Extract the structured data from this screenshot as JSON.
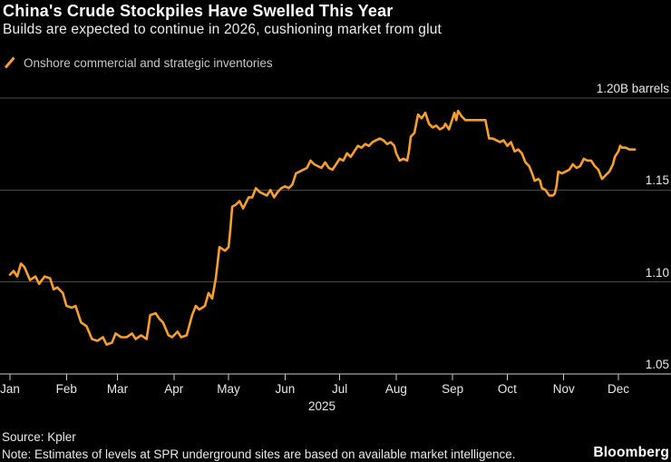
{
  "header": {
    "title": "China's Crude Stockpiles Have Swelled This Year",
    "subtitle": "Builds are expected to continue in 2026, cushioning market from glut"
  },
  "legend": {
    "label": "Onshore commercial and strategic inventories",
    "marker": "orange-slash"
  },
  "footer": {
    "source": "Source: Kpler",
    "note": "Note: Estimates of levels at SPR underground sites are based on available market intelligence.",
    "brand": "Bloomberg"
  },
  "colors": {
    "background": "#000000",
    "series": "#F79E2D",
    "grid": "#4A4A4A",
    "axis": "#C9C9C9",
    "text_primary": "#FFFFFF",
    "text_secondary": "#E9E9E9",
    "legend_text": "#C7C7C7"
  },
  "chart_data": {
    "type": "line",
    "title": "China's Crude Stockpiles Have Swelled This Year",
    "subtitle": "Builds are expected to continue in 2026, cushioning market from glut",
    "ylabel": "Billion barrels",
    "unit": "B barrels",
    "grid": "horizontal",
    "legend_position": "top-left",
    "y_axis": {
      "range": [
        1.05,
        1.2
      ],
      "ticks": [
        {
          "value": 1.2,
          "label": "1.20B barrels"
        },
        {
          "value": 1.15,
          "label": "1.15"
        },
        {
          "value": 1.1,
          "label": "1.10"
        },
        {
          "value": 1.05,
          "label": "1.05"
        }
      ]
    },
    "x_axis": {
      "unit": "day_of_year",
      "year_label": "2025",
      "months": [
        {
          "label": "Jan",
          "day": 1
        },
        {
          "label": "Feb",
          "day": 32
        },
        {
          "label": "Mar",
          "day": 60
        },
        {
          "label": "Apr",
          "day": 91
        },
        {
          "label": "May",
          "day": 121
        },
        {
          "label": "Jun",
          "day": 152
        },
        {
          "label": "Jul",
          "day": 182
        },
        {
          "label": "Aug",
          "day": 213
        },
        {
          "label": "Sep",
          "day": 244
        },
        {
          "label": "Oct",
          "day": 274
        },
        {
          "label": "Nov",
          "day": 305
        },
        {
          "label": "Dec",
          "day": 335
        }
      ]
    },
    "series": [
      {
        "name": "Onshore commercial and strategic inventories",
        "color": "#F79E2D",
        "points": [
          [
            1,
            1.104
          ],
          [
            3,
            1.106
          ],
          [
            5,
            1.103
          ],
          [
            7,
            1.11
          ],
          [
            9,
            1.108
          ],
          [
            12,
            1.101
          ],
          [
            15,
            1.103
          ],
          [
            17,
            1.099
          ],
          [
            20,
            1.103
          ],
          [
            23,
            1.102
          ],
          [
            25,
            1.096
          ],
          [
            27,
            1.097
          ],
          [
            30,
            1.094
          ],
          [
            32,
            1.087
          ],
          [
            35,
            1.086
          ],
          [
            37,
            1.087
          ],
          [
            40,
            1.078
          ],
          [
            43,
            1.076
          ],
          [
            46,
            1.069
          ],
          [
            49,
            1.068
          ],
          [
            52,
            1.07
          ],
          [
            54,
            1.066
          ],
          [
            57,
            1.067
          ],
          [
            59,
            1.072
          ],
          [
            62,
            1.07
          ],
          [
            65,
            1.07
          ],
          [
            68,
            1.072
          ],
          [
            70,
            1.069
          ],
          [
            73,
            1.071
          ],
          [
            76,
            1.069
          ],
          [
            78,
            1.082
          ],
          [
            81,
            1.083
          ],
          [
            83,
            1.08
          ],
          [
            85,
            1.078
          ],
          [
            88,
            1.071
          ],
          [
            90,
            1.07
          ],
          [
            93,
            1.073
          ],
          [
            95,
            1.07
          ],
          [
            98,
            1.071
          ],
          [
            101,
            1.082
          ],
          [
            103,
            1.087
          ],
          [
            105,
            1.085
          ],
          [
            108,
            1.087
          ],
          [
            110,
            1.094
          ],
          [
            112,
            1.091
          ],
          [
            114,
            1.102
          ],
          [
            116,
            1.119
          ],
          [
            119,
            1.117
          ],
          [
            121,
            1.119
          ],
          [
            122,
            1.129
          ],
          [
            123,
            1.141
          ],
          [
            125,
            1.142
          ],
          [
            127,
            1.144
          ],
          [
            129,
            1.14
          ],
          [
            132,
            1.146
          ],
          [
            134,
            1.146
          ],
          [
            136,
            1.151
          ],
          [
            138,
            1.149
          ],
          [
            140,
            1.148
          ],
          [
            142,
            1.147
          ],
          [
            144,
            1.15
          ],
          [
            146,
            1.146
          ],
          [
            148,
            1.149
          ],
          [
            150,
            1.151
          ],
          [
            152,
            1.152
          ],
          [
            154,
            1.151
          ],
          [
            156,
            1.153
          ],
          [
            158,
            1.159
          ],
          [
            160,
            1.16
          ],
          [
            162,
            1.161
          ],
          [
            164,
            1.162
          ],
          [
            166,
            1.166
          ],
          [
            168,
            1.164
          ],
          [
            170,
            1.163
          ],
          [
            172,
            1.162
          ],
          [
            174,
            1.165
          ],
          [
            176,
            1.162
          ],
          [
            178,
            1.161
          ],
          [
            180,
            1.164
          ],
          [
            182,
            1.167
          ],
          [
            184,
            1.166
          ],
          [
            186,
            1.17
          ],
          [
            188,
            1.168
          ],
          [
            190,
            1.171
          ],
          [
            192,
            1.174
          ],
          [
            194,
            1.173
          ],
          [
            196,
            1.175
          ],
          [
            198,
            1.174
          ],
          [
            200,
            1.176
          ],
          [
            202,
            1.177
          ],
          [
            204,
            1.178
          ],
          [
            206,
            1.177
          ],
          [
            208,
            1.175
          ],
          [
            210,
            1.176
          ],
          [
            212,
            1.174
          ],
          [
            213,
            1.17
          ],
          [
            215,
            1.166
          ],
          [
            217,
            1.167
          ],
          [
            219,
            1.166
          ],
          [
            220,
            1.171
          ],
          [
            221,
            1.179
          ],
          [
            223,
            1.181
          ],
          [
            225,
            1.191
          ],
          [
            227,
            1.189
          ],
          [
            229,
            1.192
          ],
          [
            231,
            1.186
          ],
          [
            233,
            1.184
          ],
          [
            235,
            1.185
          ],
          [
            237,
            1.183
          ],
          [
            239,
            1.184
          ],
          [
            240,
            1.186
          ],
          [
            242,
            1.183
          ],
          [
            244,
            1.189
          ],
          [
            245,
            1.192
          ],
          [
            246,
            1.188
          ],
          [
            247,
            1.193
          ],
          [
            249,
            1.19
          ],
          [
            251,
            1.188
          ],
          [
            254,
            1.188
          ],
          [
            257,
            1.188
          ],
          [
            260,
            1.188
          ],
          [
            262,
            1.188
          ],
          [
            264,
            1.178
          ],
          [
            266,
            1.178
          ],
          [
            268,
            1.177
          ],
          [
            270,
            1.176
          ],
          [
            272,
            1.177
          ],
          [
            274,
            1.174
          ],
          [
            276,
            1.176
          ],
          [
            278,
            1.171
          ],
          [
            280,
            1.172
          ],
          [
            282,
            1.17
          ],
          [
            284,
            1.165
          ],
          [
            286,
            1.163
          ],
          [
            288,
            1.158
          ],
          [
            289,
            1.155
          ],
          [
            291,
            1.156
          ],
          [
            292,
            1.155
          ],
          [
            293,
            1.151
          ],
          [
            295,
            1.15
          ],
          [
            297,
            1.147
          ],
          [
            299,
            1.147
          ],
          [
            300,
            1.148
          ],
          [
            301,
            1.152
          ],
          [
            302,
            1.16
          ],
          [
            304,
            1.159
          ],
          [
            306,
            1.16
          ],
          [
            308,
            1.161
          ],
          [
            310,
            1.164
          ],
          [
            312,
            1.162
          ],
          [
            314,
            1.163
          ],
          [
            316,
            1.167
          ],
          [
            318,
            1.166
          ],
          [
            320,
            1.166
          ],
          [
            322,
            1.163
          ],
          [
            324,
            1.161
          ],
          [
            326,
            1.156
          ],
          [
            328,
            1.158
          ],
          [
            330,
            1.16
          ],
          [
            332,
            1.164
          ],
          [
            333,
            1.168
          ],
          [
            335,
            1.171
          ],
          [
            336,
            1.174
          ],
          [
            337,
            1.173
          ],
          [
            339,
            1.173
          ],
          [
            341,
            1.172
          ],
          [
            344,
            1.172
          ]
        ]
      }
    ]
  }
}
